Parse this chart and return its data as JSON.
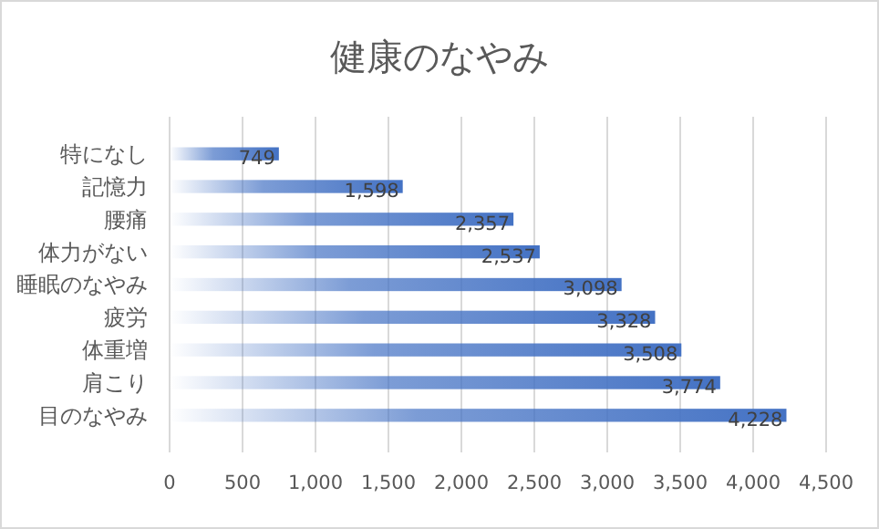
{
  "chart_data": {
    "type": "bar",
    "orientation": "horizontal",
    "title": "健康のなやみ",
    "categories": [
      "特になし",
      "記憶力",
      "腰痛",
      "体力がない",
      "睡眠のなやみ",
      "疲労",
      "体重増",
      "肩こり",
      "目のなやみ"
    ],
    "values": [
      749,
      1598,
      2357,
      2537,
      3098,
      3328,
      3508,
      3774,
      4228
    ],
    "value_labels": [
      "749",
      "1,598",
      "2,357",
      "2,537",
      "3,098",
      "3,328",
      "3,508",
      "3,774",
      "4,228"
    ],
    "color": "#4472c4",
    "xlim": [
      0,
      4500
    ],
    "xticks": [
      0,
      500,
      {
        "value": 1000,
        "label": "1,000"
      },
      {
        "value": 1500,
        "label": "1,500"
      },
      {
        "value": 2000,
        "label": "2,000"
      },
      {
        "value": 2500,
        "label": "2,500"
      },
      {
        "value": 3000,
        "label": "3,000"
      },
      {
        "value": 3500,
        "label": "3,500"
      },
      {
        "value": 4000,
        "label": "4,000"
      },
      {
        "value": 4500,
        "label": "4,500"
      }
    ],
    "grid": "x"
  }
}
